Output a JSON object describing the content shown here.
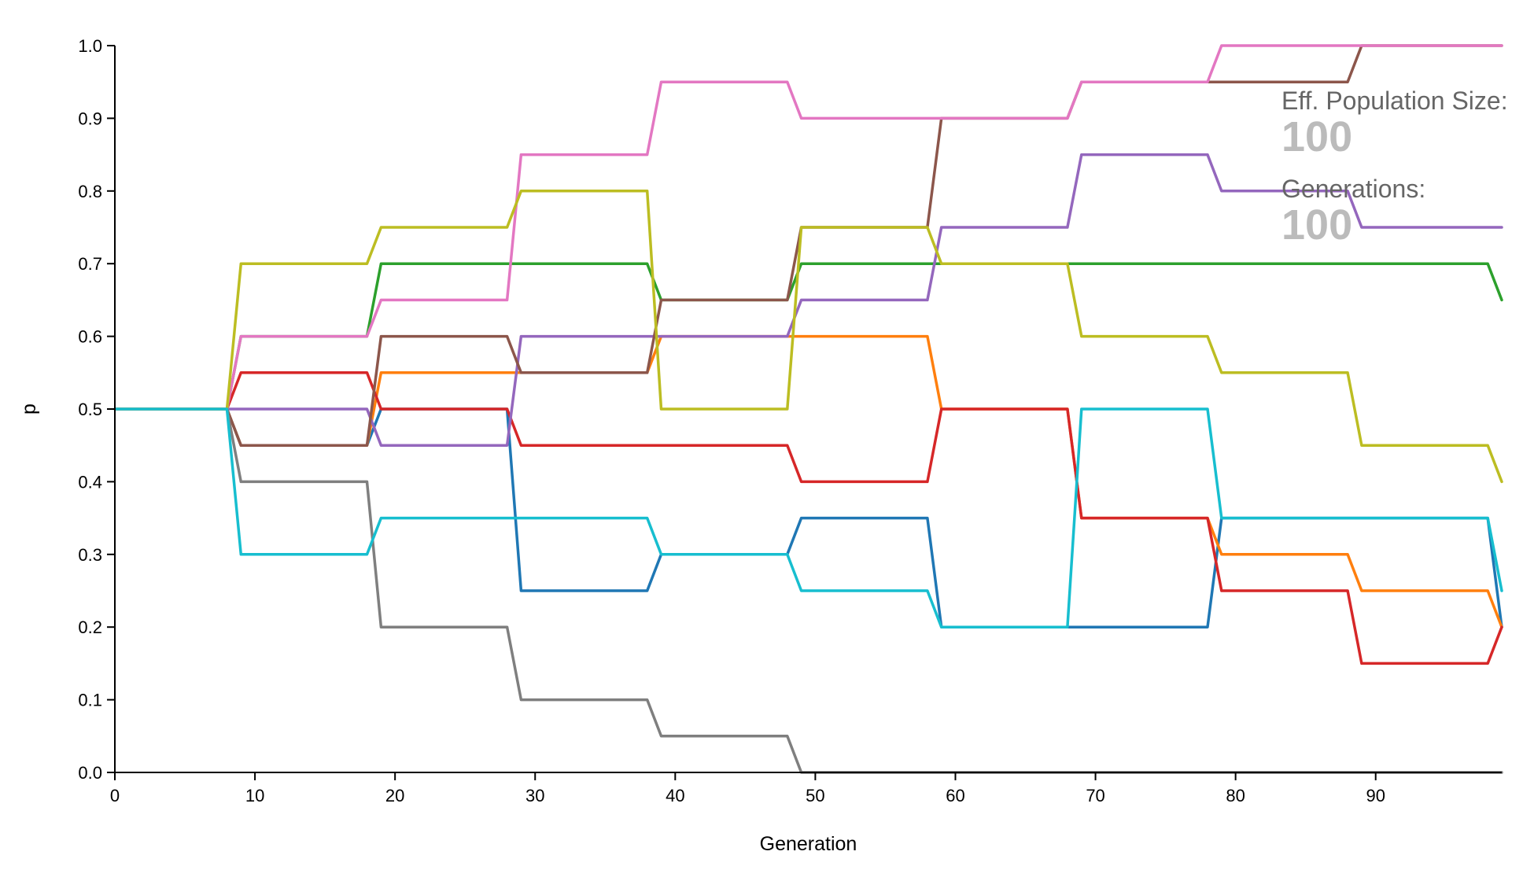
{
  "info": {
    "pop_size_label": "Eff. Population Size:",
    "pop_size_value": "100",
    "generations_label": "Generations:",
    "generations_value": "100"
  },
  "chart_data": {
    "type": "line",
    "title": "",
    "xlabel": "Generation",
    "ylabel": "p",
    "xlim": [
      0,
      99
    ],
    "ylim": [
      0,
      1
    ],
    "xticks": [
      "0",
      "10",
      "20",
      "30",
      "40",
      "50",
      "60",
      "70",
      "80",
      "90"
    ],
    "yticks": [
      "0.0",
      "0.1",
      "0.2",
      "0.3",
      "0.4",
      "0.5",
      "0.6",
      "0.7",
      "0.8",
      "0.9",
      "1.0"
    ],
    "grid": false,
    "x_breakpoints": [
      0,
      8,
      9,
      18,
      19,
      28,
      29,
      38,
      39,
      48,
      49,
      58,
      59,
      68,
      69,
      78,
      79,
      88,
      89,
      98,
      99
    ],
    "series": [
      {
        "color": "#1f77b4",
        "values": [
          0.5,
          0.5,
          0.45,
          0.45,
          0.5,
          0.5,
          0.25,
          0.25,
          0.3,
          0.3,
          0.35,
          0.35,
          0.2,
          0.2,
          0.2,
          0.2,
          0.35,
          0.35,
          0.35,
          0.35,
          0.2
        ]
      },
      {
        "color": "#ff7f0e",
        "values": [
          0.5,
          0.5,
          0.45,
          0.45,
          0.55,
          0.55,
          0.55,
          0.55,
          0.6,
          0.6,
          0.6,
          0.6,
          0.5,
          0.5,
          0.35,
          0.35,
          0.3,
          0.3,
          0.25,
          0.25,
          0.2
        ]
      },
      {
        "color": "#2ca02c",
        "values": [
          0.5,
          0.5,
          0.6,
          0.6,
          0.7,
          0.7,
          0.7,
          0.7,
          0.65,
          0.65,
          0.7,
          0.7,
          0.7,
          0.7,
          0.7,
          0.7,
          0.7,
          0.7,
          0.7,
          0.7,
          0.65
        ]
      },
      {
        "color": "#d62728",
        "values": [
          0.5,
          0.5,
          0.55,
          0.55,
          0.5,
          0.5,
          0.45,
          0.45,
          0.45,
          0.45,
          0.4,
          0.4,
          0.5,
          0.5,
          0.35,
          0.35,
          0.25,
          0.25,
          0.15,
          0.15,
          0.2
        ]
      },
      {
        "color": "#9467bd",
        "values": [
          0.5,
          0.5,
          0.5,
          0.5,
          0.45,
          0.45,
          0.6,
          0.6,
          0.6,
          0.6,
          0.65,
          0.65,
          0.75,
          0.75,
          0.85,
          0.85,
          0.8,
          0.8,
          0.75,
          0.75,
          0.75
        ]
      },
      {
        "color": "#8c564b",
        "values": [
          0.5,
          0.5,
          0.45,
          0.45,
          0.6,
          0.6,
          0.55,
          0.55,
          0.65,
          0.65,
          0.75,
          0.75,
          0.9,
          0.9,
          0.95,
          0.95,
          0.95,
          0.95,
          1.0,
          1.0,
          1.0
        ]
      },
      {
        "color": "#e377c2",
        "values": [
          0.5,
          0.5,
          0.6,
          0.6,
          0.65,
          0.65,
          0.85,
          0.85,
          0.95,
          0.95,
          0.9,
          0.9,
          0.9,
          0.9,
          0.95,
          0.95,
          1.0,
          1.0,
          1.0,
          1.0,
          1.0
        ]
      },
      {
        "color": "#7f7f7f",
        "values": [
          0.5,
          0.5,
          0.4,
          0.4,
          0.2,
          0.2,
          0.1,
          0.1,
          0.05,
          0.05,
          0.0,
          0.0,
          0.0,
          0.0,
          0.0,
          0.0,
          0.0,
          0.0,
          0.0,
          0.0,
          0.0
        ]
      },
      {
        "color": "#bcbd22",
        "values": [
          0.5,
          0.5,
          0.7,
          0.7,
          0.75,
          0.75,
          0.8,
          0.8,
          0.5,
          0.5,
          0.75,
          0.75,
          0.7,
          0.7,
          0.6,
          0.6,
          0.55,
          0.55,
          0.45,
          0.45,
          0.4
        ]
      },
      {
        "color": "#17becf",
        "values": [
          0.5,
          0.5,
          0.3,
          0.3,
          0.35,
          0.35,
          0.35,
          0.35,
          0.3,
          0.3,
          0.25,
          0.25,
          0.2,
          0.2,
          0.5,
          0.5,
          0.35,
          0.35,
          0.35,
          0.35,
          0.25
        ]
      }
    ]
  }
}
